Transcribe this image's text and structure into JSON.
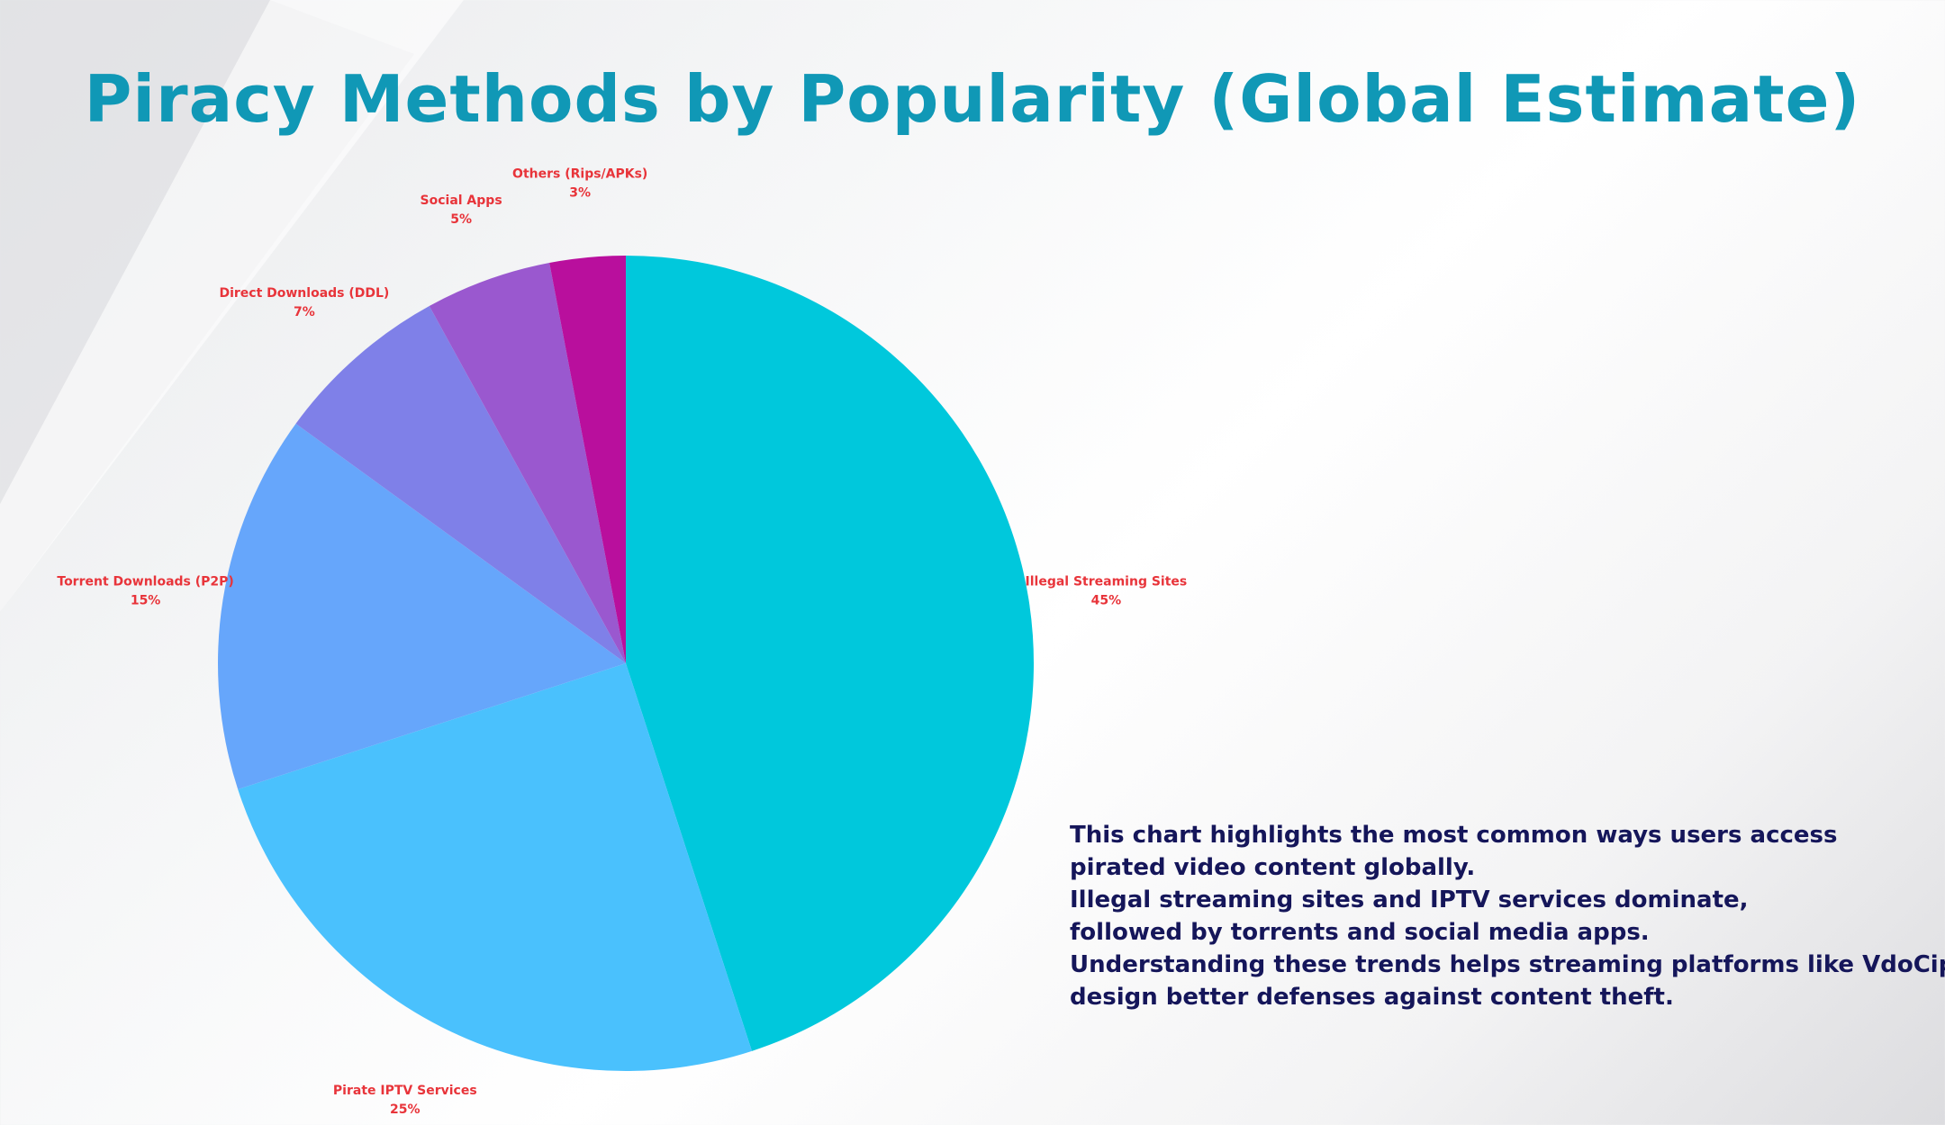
{
  "colors": {
    "title": "#1098b6",
    "label": "#e8343a",
    "note": "#15165a"
  },
  "chart_data": {
    "type": "pie",
    "title": "Piracy Methods by Popularity (Global Estimate)",
    "start_angle_deg": 0,
    "direction": "clockwise",
    "slices": [
      {
        "name": "Illegal Streaming Sites",
        "value": 45,
        "label": "45%",
        "color": "#00c8dc"
      },
      {
        "name": "Pirate IPTV Services",
        "value": 25,
        "label": "25%",
        "color": "#4ac1fd"
      },
      {
        "name": "Torrent Downloads (P2P)",
        "value": 15,
        "label": "15%",
        "color": "#66a6fb"
      },
      {
        "name": "Direct Downloads (DDL)",
        "value": 7,
        "label": "7%",
        "color": "#7f80e8"
      },
      {
        "name": "Social Apps",
        "value": 5,
        "label": "5%",
        "color": "#9a58cf"
      },
      {
        "name": "Others (Rips/APKs)",
        "value": 3,
        "label": "3%",
        "color": "#b90f9d"
      }
    ]
  },
  "description": {
    "lines": [
      "This chart highlights the most common ways users access",
      "pirated video content globally.",
      "Illegal streaming sites and IPTV services dominate,",
      "followed by torrents and social media apps.",
      "Understanding these trends helps streaming platforms like VdoCipher",
      "design better defenses against content theft."
    ]
  }
}
